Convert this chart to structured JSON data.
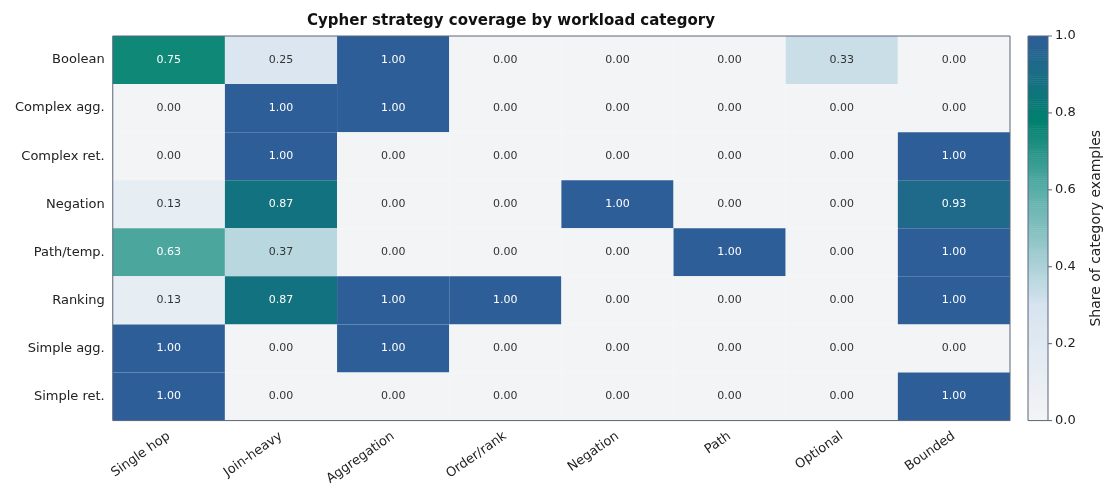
{
  "chart_data": {
    "type": "heatmap",
    "title": "Cypher strategy coverage by workload category",
    "categories": [
      "Single hop",
      "Join-heavy",
      "Aggregation",
      "Order/rank",
      "Negation",
      "Path",
      "Optional",
      "Bounded"
    ],
    "y_categories": [
      "Boolean",
      "Complex agg.",
      "Complex ret.",
      "Negation",
      "Path/temp.",
      "Ranking",
      "Simple agg.",
      "Simple ret."
    ],
    "cells": [
      [
        0.75,
        0.25,
        1.0,
        0.0,
        0.0,
        0.0,
        0.33,
        0.0
      ],
      [
        0.0,
        1.0,
        1.0,
        0.0,
        0.0,
        0.0,
        0.0,
        0.0
      ],
      [
        0.0,
        1.0,
        0.0,
        0.0,
        0.0,
        0.0,
        0.0,
        1.0
      ],
      [
        0.13,
        0.87,
        0.0,
        0.0,
        1.0,
        0.0,
        0.0,
        0.93
      ],
      [
        0.63,
        0.37,
        0.0,
        0.0,
        0.0,
        1.0,
        0.0,
        1.0
      ],
      [
        0.13,
        0.87,
        1.0,
        1.0,
        0.0,
        0.0,
        0.0,
        1.0
      ],
      [
        1.0,
        0.0,
        1.0,
        0.0,
        0.0,
        0.0,
        0.0,
        0.0
      ],
      [
        1.0,
        0.0,
        0.0,
        0.0,
        0.0,
        0.0,
        0.0,
        1.0
      ]
    ],
    "cell_labels": [
      [
        "0.75",
        "0.25",
        "1.00",
        "0.00",
        "0.00",
        "0.00",
        "0.33",
        "0.00"
      ],
      [
        "0.00",
        "1.00",
        "1.00",
        "0.00",
        "0.00",
        "0.00",
        "0.00",
        "0.00"
      ],
      [
        "0.00",
        "1.00",
        "0.00",
        "0.00",
        "0.00",
        "0.00",
        "0.00",
        "1.00"
      ],
      [
        "0.13",
        "0.87",
        "0.00",
        "0.00",
        "1.00",
        "0.00",
        "0.00",
        "0.93"
      ],
      [
        "0.63",
        "0.37",
        "0.00",
        "0.00",
        "0.00",
        "1.00",
        "0.00",
        "1.00"
      ],
      [
        "0.13",
        "0.87",
        "1.00",
        "1.00",
        "0.00",
        "0.00",
        "0.00",
        "1.00"
      ],
      [
        "1.00",
        "0.00",
        "1.00",
        "0.00",
        "0.00",
        "0.00",
        "0.00",
        "0.00"
      ],
      [
        "1.00",
        "0.00",
        "0.00",
        "0.00",
        "0.00",
        "0.00",
        "0.00",
        "1.00"
      ]
    ],
    "clim": [
      0,
      1
    ],
    "cticks": [
      {
        "value": 0,
        "label": "0.0"
      },
      {
        "value": 0.2,
        "label": "0.2"
      },
      {
        "value": 0.4,
        "label": "0.4"
      },
      {
        "value": 0.6,
        "label": "0.6"
      },
      {
        "value": 0.8,
        "label": "0.8"
      },
      {
        "value": 1,
        "label": "1.0"
      }
    ],
    "clabel": "Share of category examples",
    "data_labels": true
  }
}
